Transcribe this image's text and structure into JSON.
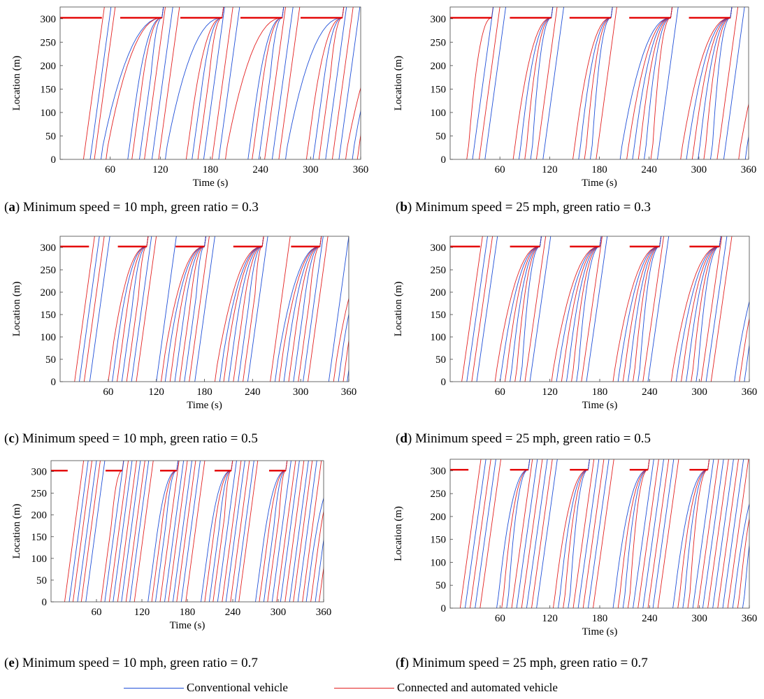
{
  "figure": {
    "captions": [
      {
        "letter": "a",
        "text": " Minimum speed = 10 mph, green ratio = 0.3"
      },
      {
        "letter": "b",
        "text": " Minimum speed = 25 mph, green ratio = 0.3"
      },
      {
        "letter": "c",
        "text": " Minimum speed = 10 mph, green ratio = 0.5"
      },
      {
        "letter": "d",
        "text": " Minimum speed = 25 mph, green ratio = 0.5"
      },
      {
        "letter": "e",
        "text": " Minimum speed = 10 mph, green ratio = 0.7"
      },
      {
        "letter": "f",
        "text": " Minimum speed = 25 mph, green ratio = 0.7"
      }
    ],
    "legend": [
      {
        "label": "Conventional vehicle",
        "color": "#1f4fd8"
      },
      {
        "label": "Connected and automated vehicle",
        "color": "#e32020"
      }
    ]
  },
  "chart_data": [
    {
      "type": "line",
      "panel": "a",
      "xlabel": "Time (s)",
      "ylabel": "Location (m)",
      "xlim": [
        0,
        360
      ],
      "ylim": [
        0,
        325
      ],
      "xticks": [
        "60",
        "120",
        "180",
        "240",
        "300",
        "360"
      ],
      "yticks": [
        "0",
        "50",
        "100",
        "150",
        "200",
        "250",
        "300"
      ],
      "stop_line_location": 302,
      "cycle_length": 72,
      "red_duration": 50,
      "min_speed_mph": 10,
      "green_ratio": 0.3,
      "vehicle_entry_times": [
        28,
        36,
        41,
        49,
        55,
        81,
        86,
        95,
        101,
        110,
        118,
        126,
        151,
        158,
        165,
        172,
        182,
        190,
        198,
        225,
        230,
        238,
        245,
        254,
        262,
        270,
        295,
        303,
        310,
        318,
        326,
        334,
        342,
        350,
        356
      ],
      "vehicle_types": [
        "CAV",
        "CV",
        "CAV",
        "CV",
        "CAV",
        "CV",
        "CAV",
        "CV",
        "CAV",
        "CV",
        "CAV",
        "CV",
        "CAV",
        "CV",
        "CAV",
        "CV",
        "CAV",
        "CV",
        "CAV",
        "CV",
        "CAV",
        "CV",
        "CAV",
        "CV",
        "CAV",
        "CV",
        "CAV",
        "CV",
        "CAV",
        "CV",
        "CAV",
        "CV",
        "CAV",
        "CV",
        "CAV"
      ]
    },
    {
      "type": "line",
      "panel": "b",
      "xlabel": "Time (s)",
      "ylabel": "Location (m)",
      "xlim": [
        0,
        360
      ],
      "ylim": [
        0,
        325
      ],
      "xticks": [
        "60",
        "120",
        "180",
        "240",
        "300",
        "360"
      ],
      "yticks": [
        "0",
        "50",
        "100",
        "150",
        "200",
        "250",
        "300"
      ],
      "stop_line_location": 302,
      "cycle_length": 72,
      "red_duration": 50,
      "min_speed_mph": 25,
      "green_ratio": 0.3,
      "vehicle_entry_times": [
        20,
        27,
        35,
        42,
        76,
        83,
        90,
        97,
        104,
        112,
        148,
        155,
        162,
        169,
        176,
        205,
        213,
        220,
        227,
        234,
        242,
        250,
        278,
        285,
        292,
        299,
        306,
        314,
        322,
        330,
        348,
        356
      ],
      "vehicle_types": [
        "CAV",
        "CV",
        "CAV",
        "CV",
        "CAV",
        "CV",
        "CAV",
        "CV",
        "CAV",
        "CV",
        "CAV",
        "CV",
        "CAV",
        "CV",
        "CAV",
        "CV",
        "CAV",
        "CV",
        "CAV",
        "CV",
        "CAV",
        "CV",
        "CAV",
        "CV",
        "CAV",
        "CV",
        "CAV",
        "CV",
        "CAV",
        "CV",
        "CAV",
        "CV"
      ]
    },
    {
      "type": "line",
      "panel": "c",
      "xlabel": "Time (s)",
      "ylabel": "Location (m)",
      "xlim": [
        0,
        360
      ],
      "ylim": [
        0,
        325
      ],
      "xticks": [
        "60",
        "120",
        "180",
        "240",
        "300",
        "360"
      ],
      "yticks": [
        "0",
        "50",
        "100",
        "150",
        "200",
        "250",
        "300"
      ],
      "stop_line_location": 302,
      "cycle_length": 72,
      "red_duration": 36,
      "min_speed_mph": 10,
      "green_ratio": 0.5,
      "vehicle_entry_times": [
        18,
        24,
        30,
        37,
        60,
        65,
        71,
        77,
        83,
        89,
        95,
        120,
        126,
        131,
        137,
        143,
        149,
        155,
        161,
        168,
        193,
        199,
        204,
        210,
        216,
        222,
        228,
        234,
        262,
        268,
        273,
        279,
        285,
        291,
        297,
        303,
        309,
        335,
        341,
        347,
        353,
        358
      ],
      "vehicle_types": [
        "CAV",
        "CV",
        "CAV",
        "CV",
        "CAV",
        "CV",
        "CAV",
        "CV",
        "CAV",
        "CV",
        "CAV",
        "CV",
        "CAV",
        "CV",
        "CAV",
        "CV",
        "CAV",
        "CV",
        "CAV",
        "CV",
        "CAV",
        "CV",
        "CAV",
        "CV",
        "CAV",
        "CV",
        "CAV",
        "CV",
        "CAV",
        "CV",
        "CAV",
        "CV",
        "CAV",
        "CV",
        "CAV",
        "CV",
        "CAV",
        "CV",
        "CAV",
        "CV",
        "CAV",
        "CV"
      ]
    },
    {
      "type": "line",
      "panel": "d",
      "xlabel": "Time (s)",
      "ylabel": "Location (m)",
      "xlim": [
        0,
        360
      ],
      "ylim": [
        0,
        325
      ],
      "xticks": [
        "60",
        "120",
        "180",
        "240",
        "300",
        "360"
      ],
      "yticks": [
        "0",
        "50",
        "100",
        "150",
        "200",
        "250",
        "300"
      ],
      "stop_line_location": 302,
      "cycle_length": 72,
      "red_duration": 36,
      "min_speed_mph": 25,
      "green_ratio": 0.5,
      "vehicle_entry_times": [
        14,
        20,
        26,
        32,
        54,
        60,
        66,
        72,
        78,
        84,
        90,
        96,
        122,
        128,
        134,
        140,
        146,
        152,
        158,
        164,
        196,
        202,
        208,
        214,
        220,
        226,
        232,
        238,
        266,
        272,
        278,
        284,
        290,
        296,
        302,
        308,
        314,
        342,
        348,
        354
      ],
      "vehicle_types": [
        "CAV",
        "CV",
        "CAV",
        "CV",
        "CAV",
        "CV",
        "CAV",
        "CV",
        "CAV",
        "CV",
        "CAV",
        "CV",
        "CAV",
        "CV",
        "CAV",
        "CV",
        "CAV",
        "CV",
        "CAV",
        "CV",
        "CAV",
        "CV",
        "CAV",
        "CV",
        "CAV",
        "CV",
        "CAV",
        "CV",
        "CAV",
        "CV",
        "CAV",
        "CV",
        "CAV",
        "CV",
        "CAV",
        "CV",
        "CAV",
        "CV",
        "CAV",
        "CV"
      ]
    },
    {
      "type": "line",
      "panel": "e",
      "xlabel": "Time (s)",
      "ylabel": "Location (m)",
      "xlim": [
        0,
        360
      ],
      "ylim": [
        0,
        325
      ],
      "xticks": [
        "60",
        "120",
        "180",
        "240",
        "300",
        "360"
      ],
      "yticks": [
        "0",
        "50",
        "100",
        "150",
        "200",
        "250",
        "300"
      ],
      "stop_line_location": 302,
      "cycle_length": 72,
      "red_duration": 22,
      "min_speed_mph": 10,
      "green_ratio": 0.7,
      "vehicle_entry_times": [
        18,
        24,
        29,
        35,
        40,
        46,
        66,
        71,
        77,
        82,
        88,
        93,
        99,
        104,
        110,
        128,
        133,
        138,
        144,
        150,
        155,
        161,
        166,
        172,
        178,
        198,
        203,
        209,
        214,
        220,
        226,
        231,
        237,
        243,
        248,
        270,
        275,
        281,
        286,
        292,
        298,
        303,
        309,
        315,
        320,
        326,
        332,
        337,
        343,
        349,
        354
      ],
      "vehicle_types": [
        "CAV",
        "CV",
        "CAV",
        "CV",
        "CAV",
        "CV",
        "CAV",
        "CV",
        "CAV",
        "CV",
        "CAV",
        "CV",
        "CAV",
        "CV",
        "CAV",
        "CV",
        "CAV",
        "CV",
        "CAV",
        "CV",
        "CAV",
        "CV",
        "CAV",
        "CV",
        "CAV",
        "CV",
        "CAV",
        "CV",
        "CAV",
        "CV",
        "CAV",
        "CV",
        "CAV",
        "CV",
        "CAV",
        "CV",
        "CAV",
        "CV",
        "CAV",
        "CV",
        "CAV",
        "CV",
        "CAV",
        "CV",
        "CAV",
        "CV",
        "CAV",
        "CV",
        "CAV",
        "CV",
        "CAV"
      ]
    },
    {
      "type": "line",
      "panel": "f",
      "xlabel": "Time (s)",
      "ylabel": "Location (m)",
      "xlim": [
        0,
        360
      ],
      "ylim": [
        0,
        325
      ],
      "xticks": [
        "60",
        "120",
        "180",
        "240",
        "300",
        "360"
      ],
      "yticks": [
        "0",
        "50",
        "100",
        "150",
        "200",
        "250",
        "300"
      ],
      "stop_line_location": 302,
      "cycle_length": 72,
      "red_duration": 22,
      "min_speed_mph": 25,
      "green_ratio": 0.7,
      "vehicle_entry_times": [
        12,
        18,
        24,
        30,
        36,
        56,
        62,
        68,
        74,
        80,
        86,
        92,
        98,
        104,
        124,
        130,
        136,
        142,
        148,
        154,
        160,
        166,
        172,
        196,
        202,
        208,
        214,
        220,
        226,
        232,
        238,
        244,
        250,
        268,
        274,
        280,
        286,
        292,
        298,
        304,
        310,
        316,
        322,
        328,
        334,
        340,
        346,
        352
      ],
      "vehicle_types": [
        "CAV",
        "CV",
        "CAV",
        "CV",
        "CAV",
        "CV",
        "CAV",
        "CV",
        "CAV",
        "CV",
        "CAV",
        "CV",
        "CAV",
        "CV",
        "CAV",
        "CV",
        "CAV",
        "CV",
        "CAV",
        "CV",
        "CAV",
        "CV",
        "CAV",
        "CV",
        "CAV",
        "CV",
        "CAV",
        "CV",
        "CAV",
        "CV",
        "CAV",
        "CV",
        "CAV",
        "CV",
        "CAV",
        "CV",
        "CAV",
        "CV",
        "CAV",
        "CV",
        "CAV",
        "CV",
        "CAV",
        "CV",
        "CAV",
        "CV",
        "CAV",
        "CV"
      ]
    }
  ]
}
